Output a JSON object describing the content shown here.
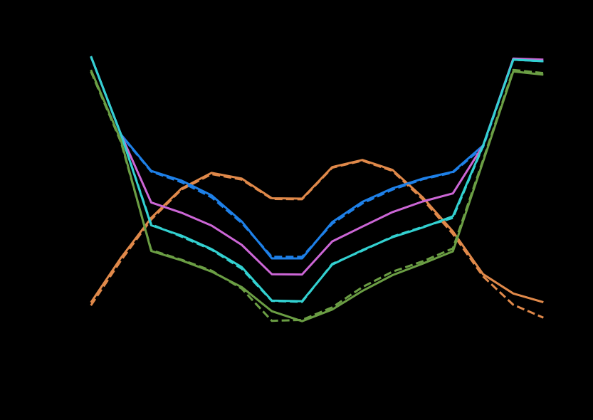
{
  "colors": {
    "background": "#000000",
    "plot_background": "#000000"
  },
  "chart_data": {
    "type": "line",
    "title": "",
    "xlabel": "",
    "ylabel": "",
    "x": [
      0,
      1,
      2,
      3,
      4,
      5,
      6,
      7,
      8,
      9,
      10,
      11,
      12,
      13,
      14,
      15
    ],
    "xlim": [
      -0.7,
      15.7
    ],
    "ylim": [
      0,
      1
    ],
    "grid": false,
    "legend": "none",
    "series": [
      {
        "color": "#e0894a",
        "dash": false,
        "values": [
          0.197,
          0.336,
          0.46,
          0.551,
          0.6,
          0.582,
          0.521,
          0.52,
          0.618,
          0.64,
          0.609,
          0.524,
          0.418,
          0.285,
          0.225,
          0.198
        ]
      },
      {
        "color": "#e0894a",
        "dash": true,
        "values": [
          0.188,
          0.328,
          0.455,
          0.548,
          0.596,
          0.579,
          0.519,
          0.518,
          0.616,
          0.638,
          0.606,
          0.518,
          0.41,
          0.278,
          0.19,
          0.15
        ]
      },
      {
        "color": "#1e80e8",
        "dash": false,
        "values": [
          0.962,
          0.719,
          0.606,
          0.576,
          0.53,
          0.449,
          0.334,
          0.334,
          0.447,
          0.51,
          0.552,
          0.582,
          0.603,
          0.685,
          0.952,
          0.947
        ]
      },
      {
        "color": "#1e80e8",
        "dash": true,
        "values": [
          0.962,
          0.717,
          0.604,
          0.571,
          0.524,
          0.444,
          0.339,
          0.339,
          0.442,
          0.505,
          0.548,
          0.58,
          0.601,
          0.68,
          0.952,
          0.947
        ]
      },
      {
        "color": "#cc66d6",
        "dash": false,
        "values": [
          0.962,
          0.719,
          0.508,
          0.476,
          0.436,
          0.376,
          0.285,
          0.284,
          0.387,
          0.433,
          0.478,
          0.511,
          0.536,
          0.685,
          0.955,
          0.952
        ]
      },
      {
        "color": "#33d1d1",
        "dash": false,
        "values": [
          0.962,
          0.719,
          0.437,
          0.405,
          0.363,
          0.307,
          0.203,
          0.201,
          0.315,
          0.36,
          0.4,
          0.43,
          0.465,
          0.685,
          0.952,
          0.947
        ]
      },
      {
        "color": "#33d1d1",
        "dash": true,
        "values": [
          0.962,
          0.719,
          0.44,
          0.402,
          0.361,
          0.302,
          0.202,
          0.199,
          0.317,
          0.358,
          0.402,
          0.432,
          0.46,
          0.683,
          0.952,
          0.947
        ]
      },
      {
        "color": "#6b9e44",
        "dash": false,
        "values": [
          0.92,
          0.7,
          0.357,
          0.328,
          0.293,
          0.245,
          0.17,
          0.139,
          0.175,
          0.233,
          0.282,
          0.318,
          0.356,
          0.635,
          0.915,
          0.905
        ]
      },
      {
        "color": "#6b9e44",
        "dash": true,
        "values": [
          0.915,
          0.695,
          0.36,
          0.33,
          0.296,
          0.24,
          0.14,
          0.143,
          0.182,
          0.245,
          0.293,
          0.325,
          0.365,
          0.64,
          0.92,
          0.91
        ]
      }
    ]
  }
}
